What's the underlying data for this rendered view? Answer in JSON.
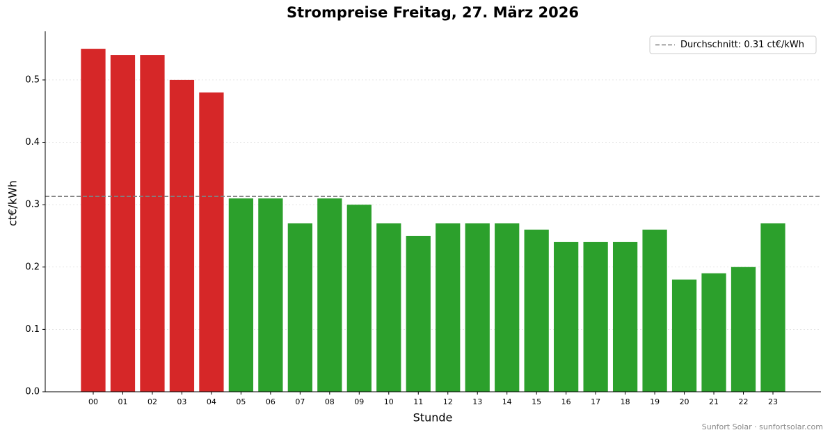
{
  "chart_data": {
    "type": "bar",
    "title": "Strompreise Freitag, 27. März 2026",
    "x_label": "Stunde",
    "y_label": "ct€/kWh",
    "footer": "Sunfort Solar · sunfortsolar.com",
    "categories": [
      "00",
      "01",
      "02",
      "03",
      "04",
      "05",
      "06",
      "07",
      "08",
      "09",
      "10",
      "11",
      "12",
      "13",
      "14",
      "15",
      "16",
      "17",
      "18",
      "19",
      "20",
      "21",
      "22",
      "23"
    ],
    "values": [
      0.55,
      0.54,
      0.54,
      0.5,
      0.48,
      0.31,
      0.31,
      0.27,
      0.31,
      0.3,
      0.27,
      0.25,
      0.27,
      0.27,
      0.27,
      0.26,
      0.24,
      0.24,
      0.24,
      0.26,
      0.18,
      0.19,
      0.2,
      0.27
    ],
    "colors": [
      "#d62728",
      "#d62728",
      "#d62728",
      "#d62728",
      "#d62728",
      "#2ca02c",
      "#2ca02c",
      "#2ca02c",
      "#2ca02c",
      "#2ca02c",
      "#2ca02c",
      "#2ca02c",
      "#2ca02c",
      "#2ca02c",
      "#2ca02c",
      "#2ca02c",
      "#2ca02c",
      "#2ca02c",
      "#2ca02c",
      "#2ca02c",
      "#2ca02c",
      "#2ca02c",
      "#2ca02c",
      "#2ca02c"
    ],
    "average": {
      "value": 0.3133,
      "label": "Durchschnitt: 0.31 ct€/kWh",
      "color": "#808080"
    },
    "legend_position": "upper right",
    "ylim": [
      0,
      0.578
    ],
    "yticks": [
      {
        "value": 0,
        "label": "0.0"
      },
      0.1,
      0.2,
      0.3,
      0.4,
      0.5
    ],
    "grid": true
  }
}
